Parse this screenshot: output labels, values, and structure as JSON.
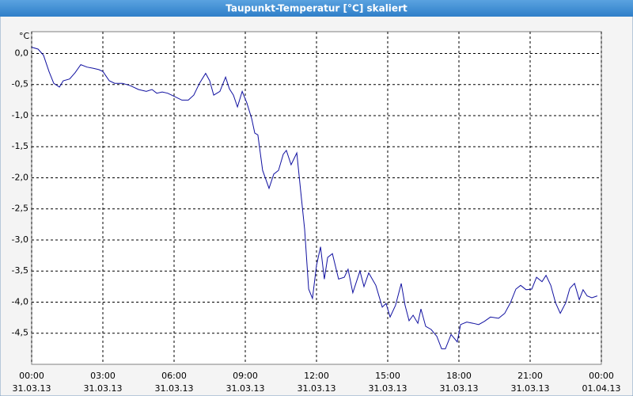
{
  "chart_data": {
    "type": "line",
    "title": "Taupunkt-Temperatur [°C] skaliert",
    "y_unit": "°C",
    "color": "#1010a0",
    "grid": true,
    "xlim": [
      0,
      24
    ],
    "ylim": [
      -5,
      0.35
    ],
    "xticks": [
      {
        "value": 0,
        "label": "00:00",
        "date": "31.03.13"
      },
      {
        "value": 3,
        "label": "03:00",
        "date": "31.03.13"
      },
      {
        "value": 6,
        "label": "06:00",
        "date": "31.03.13"
      },
      {
        "value": 9,
        "label": "09:00",
        "date": "31.03.13"
      },
      {
        "value": 12,
        "label": "12:00",
        "date": "31.03.13"
      },
      {
        "value": 15,
        "label": "15:00",
        "date": "31.03.13"
      },
      {
        "value": 18,
        "label": "18:00",
        "date": "31.03.13"
      },
      {
        "value": 21,
        "label": "21:00",
        "date": "31.03.13"
      },
      {
        "value": 24,
        "label": "00:00",
        "date": "01.04.13"
      }
    ],
    "yticks": [
      {
        "value": 0,
        "label": "0,0"
      },
      {
        "value": -0.5,
        "label": "-0,5"
      },
      {
        "value": -1,
        "label": "-1,0"
      },
      {
        "value": -1.5,
        "label": "-1,5"
      },
      {
        "value": -2,
        "label": "-2,0"
      },
      {
        "value": -2.5,
        "label": "-2,5"
      },
      {
        "value": -3,
        "label": "-3,0"
      },
      {
        "value": -3.5,
        "label": "-3,5"
      },
      {
        "value": -4,
        "label": "-4,0"
      },
      {
        "value": -4.5,
        "label": "-4,5"
      }
    ],
    "x": [
      0,
      0.27,
      0.5,
      0.73,
      0.93,
      1.17,
      1.33,
      1.6,
      1.83,
      2.07,
      2.33,
      2.6,
      2.83,
      3.0,
      3.27,
      3.5,
      3.83,
      4.17,
      4.5,
      4.83,
      5.07,
      5.27,
      5.5,
      5.73,
      6.0,
      6.33,
      6.6,
      6.83,
      7.07,
      7.33,
      7.5,
      7.67,
      7.93,
      8.17,
      8.33,
      8.5,
      8.67,
      8.87,
      9.07,
      9.27,
      9.4,
      9.53,
      9.73,
      10.0,
      10.2,
      10.4,
      10.6,
      10.73,
      10.93,
      11.17,
      11.33,
      11.5,
      11.67,
      11.83,
      12.0,
      12.17,
      12.33,
      12.47,
      12.67,
      12.93,
      13.17,
      13.33,
      13.53,
      13.83,
      14.0,
      14.2,
      14.5,
      14.77,
      14.93,
      15.1,
      15.33,
      15.57,
      15.73,
      15.9,
      16.07,
      16.27,
      16.4,
      16.6,
      16.83,
      17.07,
      17.27,
      17.43,
      17.67,
      17.93,
      18.07,
      18.33,
      18.6,
      18.83,
      19.07,
      19.33,
      19.67,
      19.93,
      20.17,
      20.4,
      20.6,
      20.83,
      21.07,
      21.27,
      21.5,
      21.67,
      21.87,
      22.07,
      22.27,
      22.5,
      22.67,
      22.87,
      23.07,
      23.23,
      23.4,
      23.6,
      23.83
    ],
    "values": [
      0.1,
      0.07,
      -0.03,
      -0.29,
      -0.48,
      -0.54,
      -0.44,
      -0.41,
      -0.31,
      -0.18,
      -0.22,
      -0.24,
      -0.26,
      -0.29,
      -0.44,
      -0.48,
      -0.48,
      -0.52,
      -0.58,
      -0.61,
      -0.58,
      -0.64,
      -0.62,
      -0.64,
      -0.69,
      -0.75,
      -0.75,
      -0.67,
      -0.48,
      -0.32,
      -0.44,
      -0.67,
      -0.61,
      -0.38,
      -0.57,
      -0.67,
      -0.86,
      -0.61,
      -0.8,
      -1.05,
      -1.28,
      -1.31,
      -1.88,
      -2.17,
      -1.94,
      -1.88,
      -1.62,
      -1.56,
      -1.79,
      -1.6,
      -2.2,
      -2.83,
      -3.79,
      -3.94,
      -3.41,
      -3.11,
      -3.63,
      -3.28,
      -3.22,
      -3.63,
      -3.6,
      -3.47,
      -3.85,
      -3.5,
      -3.75,
      -3.53,
      -3.73,
      -4.08,
      -4.02,
      -4.24,
      -4.05,
      -3.7,
      -4.05,
      -4.3,
      -4.21,
      -4.34,
      -4.11,
      -4.39,
      -4.44,
      -4.55,
      -4.75,
      -4.75,
      -4.52,
      -4.64,
      -4.36,
      -4.32,
      -4.34,
      -4.36,
      -4.31,
      -4.24,
      -4.26,
      -4.18,
      -4.01,
      -3.79,
      -3.73,
      -3.8,
      -3.79,
      -3.6,
      -3.67,
      -3.57,
      -3.73,
      -4.01,
      -4.18,
      -4.01,
      -3.78,
      -3.7,
      -3.96,
      -3.8,
      -3.9,
      -3.93,
      -3.9
    ]
  }
}
